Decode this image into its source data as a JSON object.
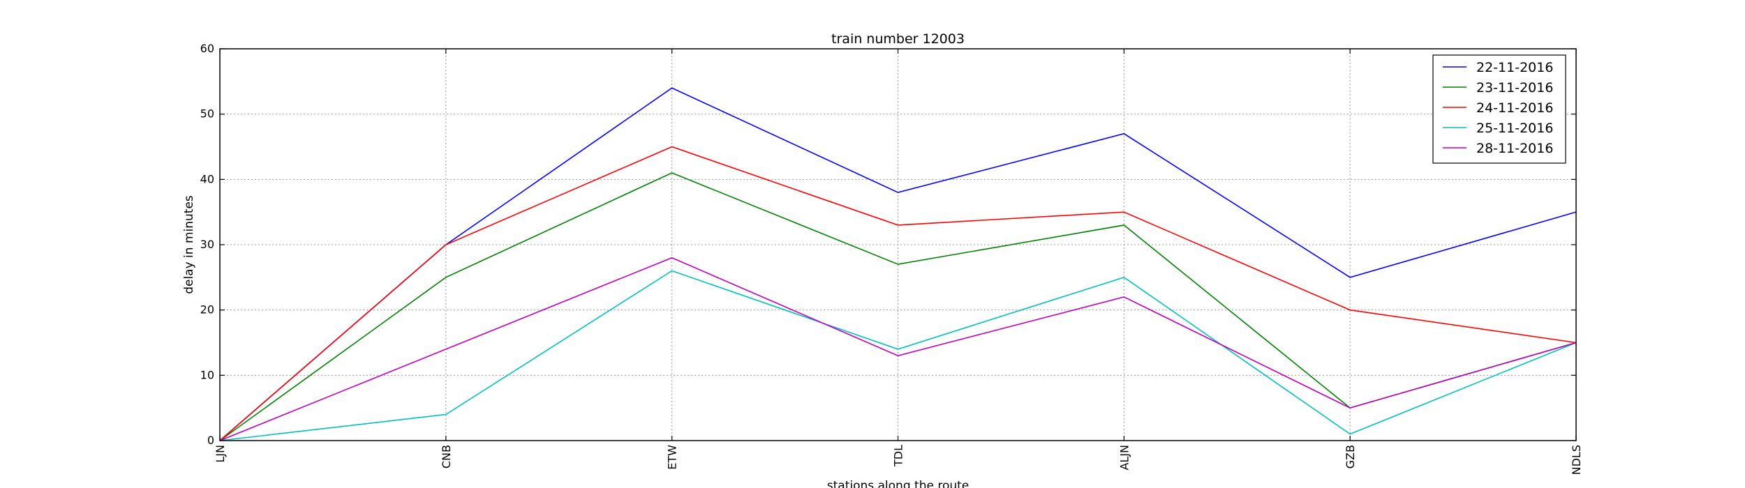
{
  "chart_data": {
    "type": "line",
    "title": "train number 12003",
    "xlabel": "stations along the route",
    "ylabel": "delay in minutes",
    "categories": [
      "LJN",
      "CNB",
      "ETW",
      "TDL",
      "ALJN",
      "GZB",
      "NDLS"
    ],
    "ylim": [
      0,
      60
    ],
    "yticks": [
      0,
      10,
      20,
      30,
      40,
      50,
      60
    ],
    "grid": true,
    "legend_position": "top-right",
    "series": [
      {
        "name": "22-11-2016",
        "color": "#0000ff",
        "values": [
          0,
          30,
          54,
          38,
          47,
          25,
          35
        ]
      },
      {
        "name": "23-11-2016",
        "color": "#008000",
        "values": [
          0,
          25,
          41,
          27,
          33,
          5,
          15
        ]
      },
      {
        "name": "24-11-2016",
        "color": "#ff0000",
        "values": [
          0,
          30,
          45,
          33,
          35,
          20,
          15
        ]
      },
      {
        "name": "25-11-2016",
        "color": "#00bfbf",
        "values": [
          0,
          4,
          26,
          14,
          25,
          1,
          15
        ]
      },
      {
        "name": "28-11-2016",
        "color": "#bf00bf",
        "values": [
          0,
          14,
          28,
          13,
          22,
          5,
          15
        ]
      }
    ]
  }
}
